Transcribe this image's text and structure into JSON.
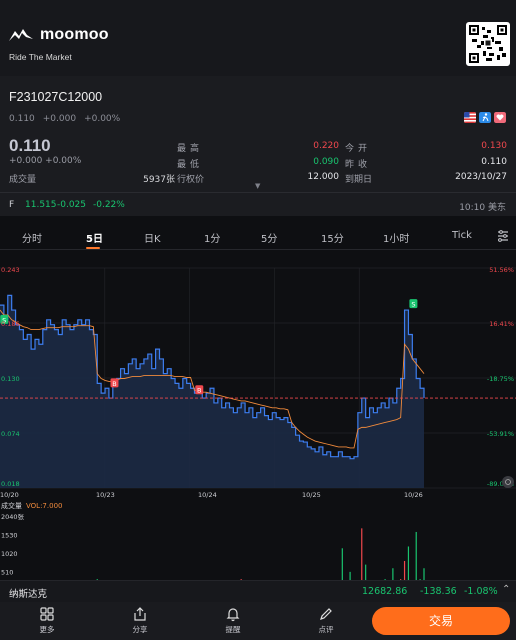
{
  "brand": {
    "name": "moomoo",
    "slogan": "Ride The Market"
  },
  "quote": {
    "symbol": "F231027C12000",
    "last_small": "0.110",
    "change_small": "+0.000",
    "pct_small": "+0.00%",
    "price": "0.110",
    "change": "+0.000 +0.00%",
    "volume_label": "成交量",
    "volume_value": "5937张",
    "high_label": "最高",
    "high_value": "0.220",
    "low_label": "最低",
    "low_value": "0.090",
    "strike_label": "行权价",
    "strike_value": "12.000",
    "open_label": "今开",
    "open_value": "0.130",
    "prev_close_label": "昨收",
    "prev_close_value": "0.110",
    "expiry_label": "到期日",
    "expiry_value": "2023/10/27",
    "underlying_code": "F",
    "underlying_price": "11.515",
    "underlying_change": "-0.025",
    "underlying_pct": "-0.22%",
    "time": "10:10 美东",
    "colors": {
      "up": "#f0484d",
      "down": "#19c46f",
      "accent": "#ff6d1b"
    }
  },
  "tabs": [
    "分时",
    "5日",
    "日K",
    "1分",
    "5分",
    "15分",
    "1小时",
    "Tick"
  ],
  "active_tab": "5日",
  "chart_data": {
    "type": "line",
    "y_left_ticks": [
      "0.243",
      "0.186",
      "0.130",
      "0.074",
      "0.018"
    ],
    "y_right_ticks": [
      "51.56%",
      "16.41%",
      "-18.75%",
      "-53.91%",
      "-89.06%"
    ],
    "x_ticks": [
      "10/20",
      "10/23",
      "10/24",
      "10/25",
      "10/26"
    ],
    "ylim": [
      0.018,
      0.243
    ],
    "reference_price": 0.11,
    "markers": [
      {
        "label": "S",
        "x": 0.01,
        "y": 0.19
      },
      {
        "label": "B",
        "x": 0.27,
        "y": 0.125
      },
      {
        "label": "B",
        "x": 0.47,
        "y": 0.118
      },
      {
        "label": "S",
        "x": 0.975,
        "y": 0.206
      }
    ],
    "price_series": [
      0.205,
      0.19,
      0.215,
      0.2,
      0.185,
      0.18,
      0.17,
      0.175,
      0.16,
      0.17,
      0.165,
      0.18,
      0.19,
      0.185,
      0.18,
      0.175,
      0.19,
      0.185,
      0.18,
      0.185,
      0.19,
      0.185,
      0.19,
      0.18,
      0.175,
      0.125,
      0.115,
      0.12,
      0.11,
      0.125,
      0.13,
      0.14,
      0.135,
      0.145,
      0.15,
      0.14,
      0.145,
      0.15,
      0.155,
      0.14,
      0.16,
      0.15,
      0.135,
      0.14,
      0.13,
      0.125,
      0.12,
      0.13,
      0.125,
      0.12,
      0.115,
      0.12,
      0.11,
      0.115,
      0.12,
      0.105,
      0.11,
      0.1,
      0.105,
      0.1,
      0.095,
      0.1,
      0.105,
      0.095,
      0.1,
      0.09,
      0.095,
      0.1,
      0.092,
      0.088,
      0.095,
      0.09,
      0.088,
      0.09,
      0.085,
      0.08,
      0.072,
      0.066,
      0.065,
      0.06,
      0.058,
      0.055,
      0.06,
      0.052,
      0.055,
      0.05,
      0.05,
      0.055,
      0.05,
      0.05,
      0.048,
      0.05,
      0.095,
      0.11,
      0.09,
      0.1,
      0.095,
      0.1,
      0.105,
      0.1,
      0.11,
      0.105,
      0.12,
      0.13,
      0.2,
      0.175,
      0.15,
      0.13,
      0.12,
      0.11
    ],
    "avg_series": [
      0.2,
      0.195,
      0.195,
      0.19,
      0.188,
      0.185,
      0.183,
      0.182,
      0.18,
      0.18,
      0.18,
      0.181,
      0.182,
      0.182,
      0.182,
      0.182,
      0.183,
      0.183,
      0.183,
      0.183,
      0.184,
      0.184,
      0.184,
      0.184,
      0.183,
      0.135,
      0.13,
      0.128,
      0.127,
      0.127,
      0.128,
      0.13,
      0.13,
      0.131,
      0.132,
      0.132,
      0.132,
      0.133,
      0.133,
      0.133,
      0.133,
      0.133,
      0.133,
      0.133,
      0.133,
      0.132,
      0.132,
      0.132,
      0.131,
      0.131,
      0.118,
      0.117,
      0.116,
      0.116,
      0.115,
      0.114,
      0.113,
      0.112,
      0.111,
      0.11,
      0.109,
      0.108,
      0.107,
      0.107,
      0.106,
      0.105,
      0.104,
      0.103,
      0.102,
      0.101,
      0.1,
      0.1,
      0.099,
      0.099,
      0.098,
      0.085,
      0.08,
      0.076,
      0.073,
      0.07,
      0.068,
      0.066,
      0.065,
      0.064,
      0.063,
      0.062,
      0.061,
      0.06,
      0.06,
      0.06,
      0.059,
      0.059,
      0.078,
      0.08,
      0.08,
      0.081,
      0.082,
      0.083,
      0.084,
      0.085,
      0.086,
      0.087,
      0.088,
      0.09,
      0.165,
      0.16,
      0.15,
      0.145,
      0.14,
      0.135
    ],
    "volume": {
      "label": "成交量",
      "vol_text": "VOL:7.000",
      "ticks": [
        "2040张",
        "1530",
        "1020",
        "510"
      ],
      "ylim": [
        0,
        2040
      ],
      "values": [
        20,
        40,
        15,
        60,
        30,
        10,
        25,
        50,
        20,
        35,
        15,
        45,
        25,
        10,
        30,
        60,
        20,
        15,
        40,
        25,
        10,
        30,
        20,
        15,
        25,
        300,
        120,
        80,
        60,
        40,
        90,
        30,
        70,
        50,
        120,
        60,
        40,
        200,
        80,
        30,
        50,
        90,
        40,
        60,
        110,
        70,
        30,
        50,
        40,
        20,
        40,
        60,
        30,
        50,
        80,
        40,
        20,
        50,
        30,
        60,
        40,
        70,
        300,
        50,
        40,
        60,
        30,
        80,
        40,
        60,
        30,
        40,
        70,
        50,
        30,
        40,
        60,
        80,
        50,
        70,
        90,
        40,
        60,
        30,
        50,
        80,
        40,
        60,
        1150,
        70,
        500,
        40,
        120,
        1700,
        700,
        200,
        90,
        150,
        80,
        300,
        200,
        600,
        250,
        300,
        800,
        1200,
        200,
        1600,
        300,
        600
      ],
      "colors": [
        "#19c46f",
        "#f0484d"
      ]
    }
  },
  "index_bar": {
    "name": "纳斯达克",
    "price": "12682.86",
    "change": "-138.36",
    "pct": "-1.08%"
  },
  "bottom_nav": {
    "more": "更多",
    "share": "分享",
    "alert": "提醒",
    "comment": "点评",
    "trade": "交易"
  }
}
